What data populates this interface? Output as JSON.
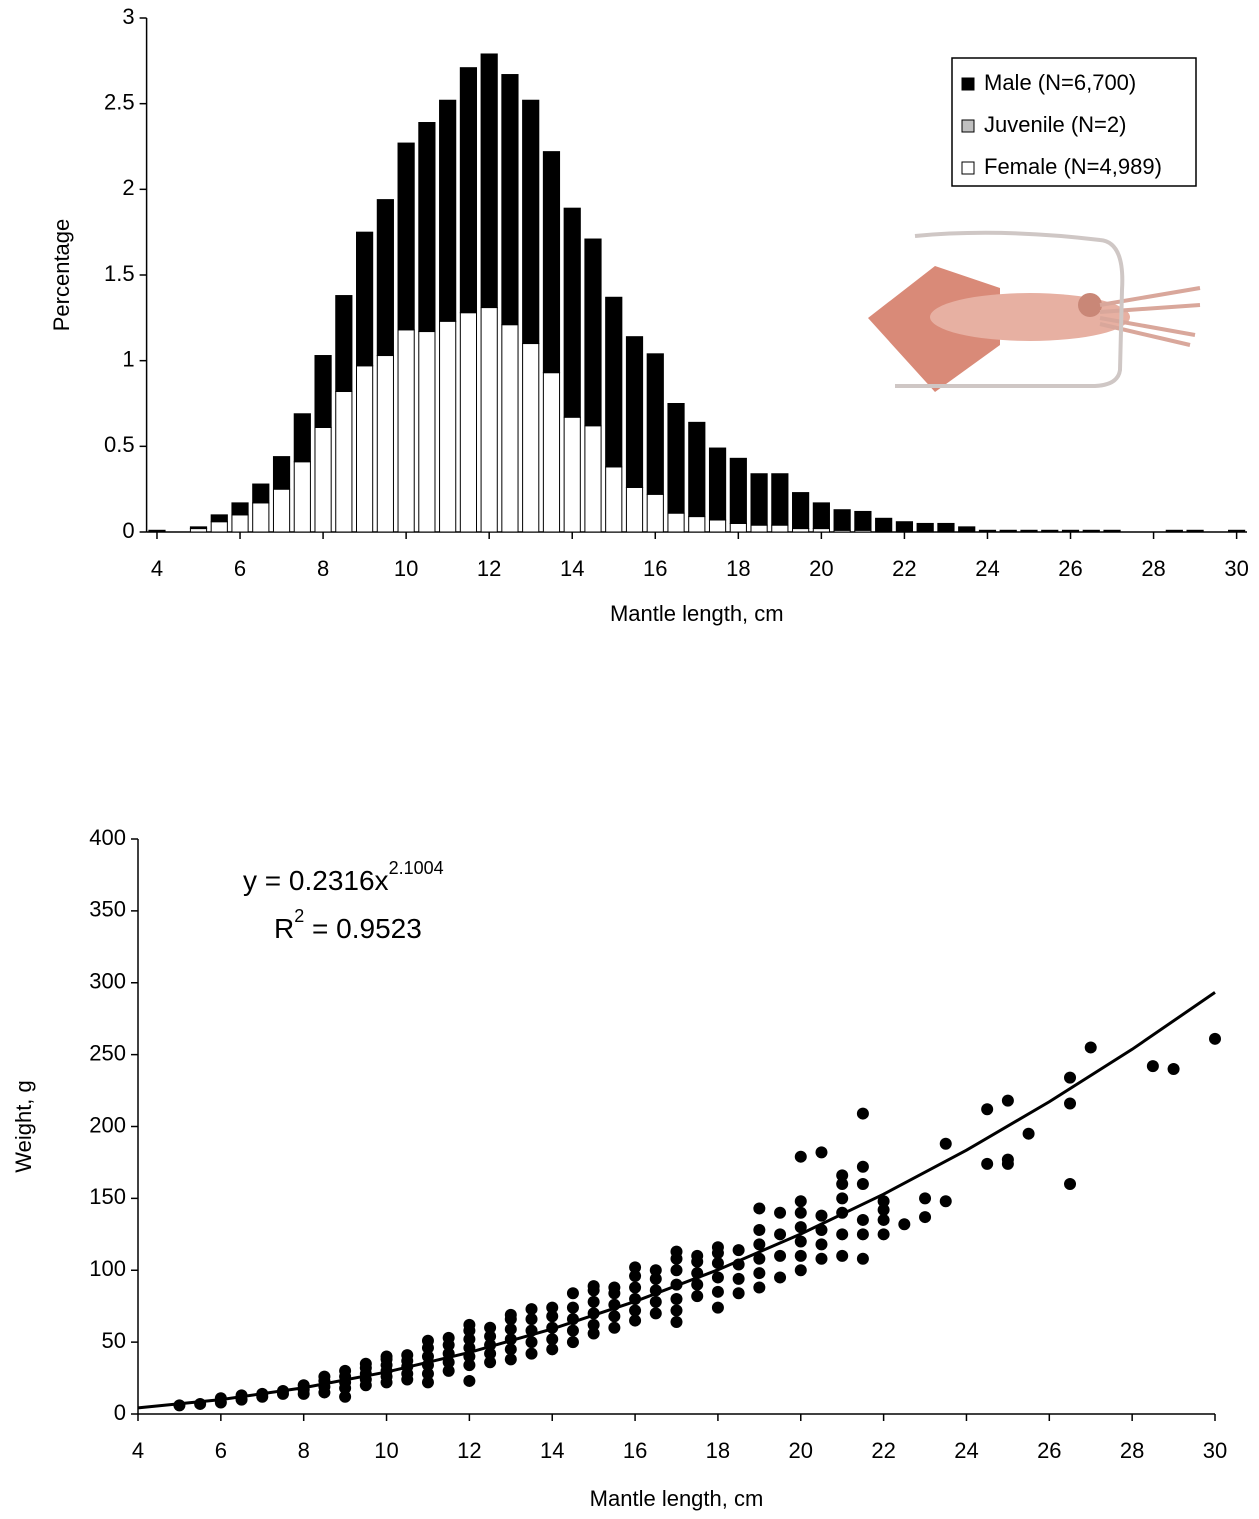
{
  "chart_data": [
    {
      "type": "bar",
      "stacked": true,
      "xlabel": "Mantle length, cm",
      "ylabel": "Percentage",
      "x": [
        4,
        4.5,
        5,
        5.5,
        6,
        6.5,
        7,
        7.5,
        8,
        8.5,
        9,
        9.5,
        10,
        10.5,
        11,
        11.5,
        12,
        12.5,
        13,
        13.5,
        14,
        14.5,
        15,
        15.5,
        16,
        16.5,
        17,
        17.5,
        18,
        18.5,
        19,
        19.5,
        20,
        20.5,
        21,
        21.5,
        22,
        22.5,
        23,
        23.5,
        24,
        24.5,
        25,
        25.5,
        26,
        26.5,
        27,
        27.5,
        28,
        28.5,
        29,
        29.5,
        30
      ],
      "series": [
        {
          "name": "Female (N=4,989)",
          "color": "#ffffff",
          "values": [
            0,
            0,
            0.02,
            0.06,
            0.1,
            0.17,
            0.25,
            0.41,
            0.61,
            0.82,
            0.97,
            1.03,
            1.18,
            1.17,
            1.23,
            1.28,
            1.31,
            1.21,
            1.1,
            0.93,
            0.67,
            0.62,
            0.38,
            0.26,
            0.22,
            0.11,
            0.09,
            0.07,
            0.05,
            0.04,
            0.04,
            0.02,
            0.02,
            0.01,
            0.01,
            0,
            0,
            0,
            0,
            0,
            0,
            0,
            0,
            0,
            0,
            0,
            0,
            0,
            0,
            0,
            0,
            0,
            0
          ]
        },
        {
          "name": "Juvenile (N=2)",
          "color": "#c0c0c0",
          "values": [
            0,
            0,
            0,
            0,
            0,
            0,
            0,
            0,
            0,
            0,
            0,
            0,
            0,
            0,
            0,
            0,
            0,
            0,
            0,
            0,
            0,
            0,
            0,
            0,
            0,
            0,
            0,
            0,
            0,
            0,
            0,
            0,
            0,
            0,
            0,
            0,
            0,
            0,
            0,
            0,
            0,
            0,
            0,
            0,
            0,
            0,
            0,
            0,
            0,
            0,
            0,
            0,
            0
          ]
        },
        {
          "name": "Male (N=6,700)",
          "color": "#000000",
          "values": [
            0.01,
            0,
            0.01,
            0.04,
            0.07,
            0.11,
            0.19,
            0.28,
            0.42,
            0.56,
            0.78,
            0.91,
            1.09,
            1.22,
            1.29,
            1.43,
            1.48,
            1.46,
            1.42,
            1.29,
            1.22,
            1.09,
            0.99,
            0.88,
            0.82,
            0.64,
            0.55,
            0.42,
            0.38,
            0.3,
            0.3,
            0.21,
            0.15,
            0.12,
            0.11,
            0.08,
            0.06,
            0.05,
            0.05,
            0.03,
            0.01,
            0.01,
            0.01,
            0.01,
            0.01,
            0.01,
            0.01,
            0,
            0,
            0.01,
            0.01,
            0,
            0.01
          ]
        }
      ],
      "xlim": [
        3.75,
        30.25
      ],
      "xticks": [
        4,
        6,
        8,
        10,
        12,
        14,
        16,
        18,
        20,
        22,
        24,
        26,
        28,
        30
      ],
      "ylim": [
        0,
        3
      ],
      "yticks": [
        0,
        0.5,
        1,
        1.5,
        2,
        2.5,
        3
      ],
      "legend": "upper right"
    },
    {
      "type": "scatter",
      "xlabel": "Mantle length, cm",
      "ylabel": "Weight, g",
      "color": "#000000",
      "x": [
        5,
        5.5,
        6,
        6,
        6.5,
        6.5,
        7,
        7,
        7.5,
        7.5,
        8,
        8,
        8,
        8.5,
        8.5,
        8.5,
        8.5,
        9,
        9,
        9,
        9,
        9,
        9.5,
        9.5,
        9.5,
        9.5,
        9.5,
        10,
        10,
        10,
        10,
        10,
        10,
        10.5,
        10.5,
        10.5,
        10.5,
        10.5,
        11,
        11,
        11,
        11,
        11,
        11,
        11.5,
        11.5,
        11.5,
        11.5,
        11.5,
        12,
        12,
        12,
        12,
        12,
        12,
        12,
        12.5,
        12.5,
        12.5,
        12.5,
        12.5,
        13,
        13,
        13,
        13,
        13,
        13,
        13.5,
        13.5,
        13.5,
        13.5,
        13.5,
        14,
        14,
        14,
        14,
        14,
        14.5,
        14.5,
        14.5,
        14.5,
        14.5,
        15,
        15,
        15,
        15,
        15,
        15,
        15.5,
        15.5,
        15.5,
        15.5,
        15.5,
        16,
        16,
        16,
        16,
        16,
        16,
        16.5,
        16.5,
        16.5,
        16.5,
        16.5,
        17,
        17,
        17,
        17,
        17,
        17,
        17,
        17.5,
        17.5,
        17.5,
        17.5,
        17.5,
        18,
        18,
        18,
        18,
        18,
        18,
        18.5,
        18.5,
        18.5,
        18.5,
        19,
        19,
        19,
        19,
        19,
        19,
        19.5,
        19.5,
        19.5,
        19.5,
        20,
        20,
        20,
        20,
        20,
        20,
        20,
        20.5,
        20.5,
        20.5,
        20.5,
        20.5,
        21,
        21,
        21,
        21,
        21,
        21,
        21.5,
        21.5,
        21.5,
        21.5,
        21.5,
        21.5,
        22,
        22,
        22,
        22,
        22.5,
        23,
        23,
        23.5,
        23.5,
        24.5,
        24.5,
        25,
        25,
        25,
        25.5,
        26.5,
        26.5,
        26.5,
        27,
        28.5,
        29,
        30
      ],
      "y": [
        6,
        7,
        8,
        11,
        10,
        13,
        12,
        14,
        14,
        16,
        14,
        17,
        20,
        15,
        19,
        23,
        26,
        12,
        18,
        22,
        26,
        30,
        20,
        24,
        28,
        32,
        35,
        22,
        26,
        30,
        34,
        38,
        40,
        24,
        28,
        33,
        37,
        41,
        22,
        28,
        34,
        40,
        46,
        51,
        30,
        36,
        42,
        48,
        53,
        23,
        34,
        40,
        46,
        52,
        58,
        62,
        36,
        42,
        48,
        54,
        60,
        38,
        45,
        52,
        59,
        66,
        69,
        42,
        50,
        58,
        66,
        73,
        45,
        52,
        60,
        68,
        74,
        50,
        58,
        66,
        74,
        84,
        56,
        62,
        70,
        78,
        86,
        89,
        60,
        68,
        76,
        84,
        88,
        65,
        72,
        80,
        88,
        96,
        102,
        70,
        78,
        86,
        94,
        100,
        64,
        72,
        80,
        90,
        100,
        108,
        113,
        82,
        90,
        98,
        106,
        110,
        74,
        85,
        95,
        105,
        112,
        116,
        84,
        94,
        104,
        114,
        88,
        98,
        108,
        118,
        128,
        143,
        95,
        110,
        125,
        140,
        100,
        110,
        120,
        130,
        140,
        148,
        179,
        108,
        118,
        128,
        138,
        182,
        110,
        125,
        140,
        150,
        160,
        166,
        108,
        125,
        135,
        160,
        172,
        209,
        125,
        135,
        142,
        148,
        132,
        137,
        150,
        148,
        188,
        174,
        212,
        174,
        177,
        218,
        195,
        160,
        216,
        234,
        255,
        242,
        240,
        261
      ],
      "trendline": {
        "x": [
          4,
          6,
          8,
          10,
          12,
          14,
          16,
          18,
          20,
          22,
          24,
          26,
          28,
          30
        ],
        "y": [
          4.26,
          9.98,
          18.26,
          29.19,
          42.8,
          59.2,
          78.3,
          100.3,
          125.2,
          152.9,
          183.5,
          217.2,
          253.7,
          293.3
        ]
      },
      "equation": {
        "base": "y = 0.2316x",
        "exponent": "2.1004"
      },
      "r_squared": {
        "base": "R",
        "exponent": "2",
        "rest": " = 0.9523"
      },
      "xlim": [
        4,
        30
      ],
      "xticks": [
        4,
        6,
        8,
        10,
        12,
        14,
        16,
        18,
        20,
        22,
        24,
        26,
        28,
        30
      ],
      "ylim": [
        0,
        400
      ],
      "yticks": [
        0,
        50,
        100,
        150,
        200,
        250,
        300,
        350,
        400
      ]
    }
  ]
}
